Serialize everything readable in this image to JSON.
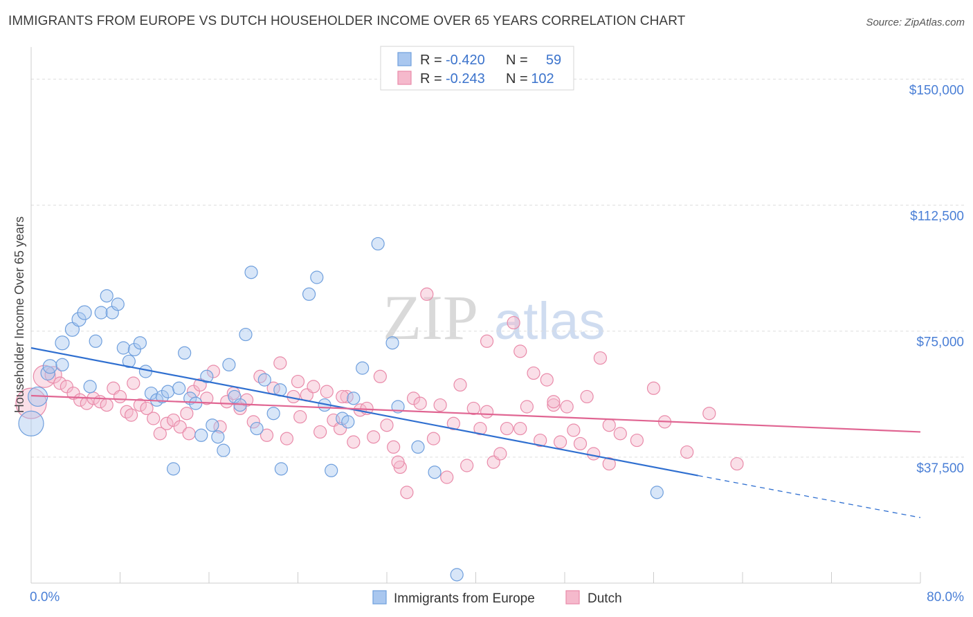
{
  "title": "IMMIGRANTS FROM EUROPE VS DUTCH HOUSEHOLDER INCOME OVER 65 YEARS CORRELATION CHART",
  "source": "Source: ZipAtlas.com",
  "watermark": {
    "zip": "ZIP",
    "atlas": "atlas"
  },
  "colors": {
    "blue_fill": "#a9c7ef",
    "blue_stroke": "#6f9fdd",
    "blue_line": "#2f6fd0",
    "pink_fill": "#f5b9cc",
    "pink_stroke": "#e98aa9",
    "pink_line": "#e06592",
    "axis_label": "#4a7fd6",
    "grid": "#dddddd"
  },
  "legend_box": {
    "rows": [
      {
        "r_label": "R =",
        "r_value": "-0.420",
        "n_label": "N =",
        "n_value": "59",
        "series": "blue"
      },
      {
        "r_label": "R =",
        "r_value": "-0.243",
        "n_label": "N =",
        "n_value": "102",
        "series": "pink"
      }
    ]
  },
  "chart_data": {
    "type": "scatter",
    "title": "IMMIGRANTS FROM EUROPE VS DUTCH HOUSEHOLDER INCOME OVER 65 YEARS CORRELATION CHART",
    "xlabel": "",
    "ylabel": "Householder Income Over 65 years",
    "xlim": [
      0,
      80
    ],
    "ylim": [
      0,
      157500
    ],
    "y_ticks": [
      37500,
      75000,
      112500,
      150000
    ],
    "y_tick_labels": [
      "$37,500",
      "$75,000",
      "$112,500",
      "$150,000"
    ],
    "x_tick_labels": [
      "0.0%",
      "80.0%"
    ],
    "grid": true,
    "legend": "top-center",
    "series": [
      {
        "name": "Immigrants from Europe",
        "color": "#a9c7ef",
        "trend": {
          "x0": 0,
          "y0": 70000,
          "x1": 60,
          "y1": 32000,
          "dash_to_x": 80,
          "dash_to_y": 19500
        },
        "points": [
          [
            0,
            47500,
            18
          ],
          [
            0.6,
            55500,
            14
          ],
          [
            1.5,
            62500,
            10
          ],
          [
            1.7,
            64500,
            10
          ],
          [
            2.8,
            65000,
            9
          ],
          [
            2.8,
            71500,
            10
          ],
          [
            3.7,
            75500,
            10
          ],
          [
            4.3,
            78500,
            10
          ],
          [
            4.8,
            80500,
            10
          ],
          [
            5.3,
            58500,
            9
          ],
          [
            5.8,
            72000,
            9
          ],
          [
            6.3,
            80500,
            9
          ],
          [
            6.8,
            85500,
            9
          ],
          [
            7.3,
            80500,
            9
          ],
          [
            7.8,
            83000,
            9
          ],
          [
            8.3,
            70000,
            9
          ],
          [
            8.8,
            66000,
            9
          ],
          [
            9.3,
            69500,
            9
          ],
          [
            9.8,
            71500,
            9
          ],
          [
            10.3,
            63000,
            9
          ],
          [
            10.8,
            56500,
            9
          ],
          [
            11.3,
            54500,
            9
          ],
          [
            11.8,
            55500,
            9
          ],
          [
            12.3,
            57000,
            9
          ],
          [
            12.8,
            34000,
            9
          ],
          [
            13.3,
            58000,
            9
          ],
          [
            13.8,
            68500,
            9
          ],
          [
            14.3,
            55000,
            9
          ],
          [
            14.8,
            53500,
            9
          ],
          [
            15.3,
            44000,
            9
          ],
          [
            15.8,
            61500,
            9
          ],
          [
            16.3,
            47000,
            9
          ],
          [
            16.8,
            43500,
            9
          ],
          [
            17.3,
            39500,
            9
          ],
          [
            17.8,
            65000,
            9
          ],
          [
            18.3,
            55500,
            9
          ],
          [
            18.8,
            53000,
            9
          ],
          [
            19.3,
            74000,
            9
          ],
          [
            19.8,
            92500,
            9
          ],
          [
            20.3,
            46000,
            9
          ],
          [
            21.0,
            60500,
            9
          ],
          [
            21.8,
            50500,
            9
          ],
          [
            22.4,
            57500,
            9
          ],
          [
            22.5,
            34000,
            9
          ],
          [
            25.0,
            86000,
            9
          ],
          [
            25.7,
            91000,
            9
          ],
          [
            26.4,
            53000,
            9
          ],
          [
            27.0,
            33500,
            9
          ],
          [
            28.0,
            49000,
            9
          ],
          [
            29.0,
            55000,
            9
          ],
          [
            29.8,
            64000,
            9
          ],
          [
            31.2,
            101000,
            9
          ],
          [
            32.5,
            71500,
            9
          ],
          [
            33.0,
            52500,
            9
          ],
          [
            34.8,
            40500,
            9
          ],
          [
            36.3,
            33000,
            9
          ],
          [
            38.3,
            2500,
            9
          ],
          [
            56.3,
            27000,
            9
          ],
          [
            28.5,
            48000,
            9
          ]
        ]
      },
      {
        "name": "Dutch",
        "color": "#f5b9cc",
        "trend": {
          "x0": 0,
          "y0": 55800,
          "x1": 80,
          "y1": 45000
        },
        "points": [
          [
            0,
            53500,
            22
          ],
          [
            1.2,
            61500,
            16
          ],
          [
            2.0,
            62000,
            12
          ],
          [
            2.6,
            59500,
            9
          ],
          [
            3.2,
            58500,
            9
          ],
          [
            3.8,
            56500,
            9
          ],
          [
            4.4,
            54500,
            9
          ],
          [
            5.0,
            53500,
            9
          ],
          [
            5.6,
            55000,
            9
          ],
          [
            6.2,
            54000,
            9
          ],
          [
            6.8,
            53000,
            9
          ],
          [
            7.4,
            58000,
            9
          ],
          [
            8.0,
            55500,
            9
          ],
          [
            8.6,
            51000,
            9
          ],
          [
            9.2,
            59500,
            9
          ],
          [
            9.8,
            53000,
            9
          ],
          [
            10.4,
            52000,
            9
          ],
          [
            11.0,
            49000,
            9
          ],
          [
            11.6,
            44500,
            9
          ],
          [
            12.2,
            47500,
            9
          ],
          [
            12.8,
            48500,
            9
          ],
          [
            13.4,
            46500,
            9
          ],
          [
            14.0,
            50500,
            9
          ],
          [
            14.6,
            57000,
            9
          ],
          [
            15.2,
            59000,
            9
          ],
          [
            15.8,
            55000,
            9
          ],
          [
            16.4,
            63000,
            9
          ],
          [
            17.0,
            46500,
            9
          ],
          [
            17.6,
            54000,
            9
          ],
          [
            18.2,
            56500,
            9
          ],
          [
            18.8,
            52000,
            9
          ],
          [
            19.4,
            54500,
            9
          ],
          [
            20.0,
            48000,
            9
          ],
          [
            20.6,
            61500,
            9
          ],
          [
            21.2,
            44000,
            9
          ],
          [
            21.8,
            58000,
            9
          ],
          [
            22.4,
            65500,
            9
          ],
          [
            23.0,
            43000,
            9
          ],
          [
            23.6,
            55500,
            9
          ],
          [
            24.2,
            49500,
            9
          ],
          [
            24.8,
            56000,
            9
          ],
          [
            25.4,
            58500,
            9
          ],
          [
            26.0,
            45000,
            9
          ],
          [
            26.6,
            57000,
            9
          ],
          [
            27.2,
            48500,
            9
          ],
          [
            27.8,
            46000,
            9
          ],
          [
            28.4,
            55500,
            9
          ],
          [
            29.0,
            42000,
            9
          ],
          [
            29.6,
            51500,
            9
          ],
          [
            30.2,
            52000,
            9
          ],
          [
            30.8,
            43500,
            9
          ],
          [
            31.4,
            61500,
            9
          ],
          [
            32.0,
            47000,
            9
          ],
          [
            32.6,
            40500,
            9
          ],
          [
            33.2,
            34500,
            9
          ],
          [
            33.8,
            27000,
            9
          ],
          [
            34.4,
            55000,
            9
          ],
          [
            35.0,
            53500,
            9
          ],
          [
            35.6,
            86000,
            9
          ],
          [
            36.2,
            43000,
            9
          ],
          [
            36.8,
            53000,
            9
          ],
          [
            37.4,
            31500,
            9
          ],
          [
            38.0,
            47500,
            9
          ],
          [
            38.6,
            59000,
            9
          ],
          [
            39.2,
            35000,
            9
          ],
          [
            39.8,
            52000,
            9
          ],
          [
            40.4,
            46000,
            9
          ],
          [
            41.0,
            72000,
            9
          ],
          [
            41.6,
            36000,
            9
          ],
          [
            42.2,
            38500,
            9
          ],
          [
            42.8,
            46000,
            9
          ],
          [
            43.4,
            77500,
            9
          ],
          [
            44.0,
            69000,
            9
          ],
          [
            44.6,
            52500,
            9
          ],
          [
            45.2,
            62500,
            9
          ],
          [
            45.8,
            42500,
            9
          ],
          [
            46.4,
            60500,
            9
          ],
          [
            47.0,
            53000,
            9
          ],
          [
            47.6,
            42000,
            9
          ],
          [
            48.2,
            52500,
            9
          ],
          [
            48.8,
            45500,
            9
          ],
          [
            49.4,
            41500,
            9
          ],
          [
            50.0,
            55500,
            9
          ],
          [
            50.6,
            38500,
            9
          ],
          [
            51.2,
            67000,
            9
          ],
          [
            52.0,
            35500,
            9
          ],
          [
            53.0,
            44500,
            9
          ],
          [
            54.5,
            42500,
            9
          ],
          [
            56.0,
            58000,
            9
          ],
          [
            57.0,
            48000,
            9
          ],
          [
            59.0,
            39000,
            9
          ],
          [
            61.0,
            50500,
            9
          ],
          [
            63.5,
            35500,
            9
          ],
          [
            14.2,
            44500,
            9
          ],
          [
            9.0,
            50000,
            9
          ],
          [
            24.0,
            60000,
            9
          ],
          [
            28.0,
            55500,
            9
          ],
          [
            33.0,
            36000,
            9
          ],
          [
            44.0,
            46000,
            9
          ],
          [
            52.0,
            47000,
            9
          ],
          [
            41.0,
            51000,
            9
          ],
          [
            47.0,
            54000,
            9
          ]
        ]
      }
    ]
  },
  "bottom_legend": [
    {
      "label": "Immigrants from Europe",
      "series": "blue"
    },
    {
      "label": "Dutch",
      "series": "pink"
    }
  ]
}
